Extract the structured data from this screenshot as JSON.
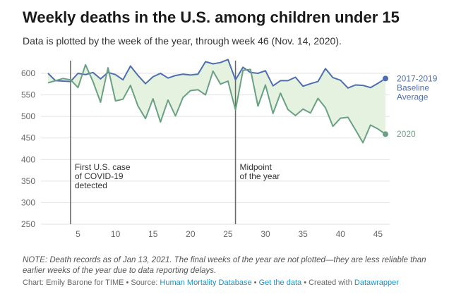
{
  "title": "Weekly deaths in the U.S. among children under 15",
  "subtitle": "Data is plotted by the week of the year, through week 46 (Nov. 14, 2020).",
  "note": "NOTE: Death records as of Jan 13, 2021. The final weeks of the year are not plotted—they are less reliable than earlier weeks of the year due to data reporting delays.",
  "credits": {
    "prefix": "Chart: Emily Barone for TIME • Source: ",
    "source_link": "Human Mortality Database",
    "sep1": " • ",
    "data_link": "Get the data",
    "sep2": " • Created with ",
    "tool_link": "Datawrapper"
  },
  "colors": {
    "baseline": "#4e6fad",
    "y2020": "#6aa084",
    "fill": "#e4f2df",
    "grid": "#e2e2e2",
    "annotation_line": "#666666",
    "axis_text": "#666666"
  },
  "chart_data": {
    "type": "line",
    "xlabel": "",
    "ylabel": "",
    "xlim": [
      1,
      46
    ],
    "ylim": [
      250,
      600
    ],
    "y_ticks": [
      250,
      300,
      350,
      400,
      450,
      500,
      550,
      600
    ],
    "x_ticks": [
      5,
      10,
      15,
      20,
      25,
      30,
      35,
      40,
      45
    ],
    "fill_between": true,
    "series": [
      {
        "name": "2017-2019 Baseline Average",
        "label_lines": [
          "2017-2019",
          "Baseline",
          "Average"
        ],
        "x": [
          1,
          2,
          3,
          4,
          5,
          6,
          7,
          8,
          9,
          10,
          11,
          12,
          13,
          14,
          15,
          16,
          17,
          18,
          19,
          20,
          21,
          22,
          23,
          24,
          25,
          26,
          27,
          28,
          29,
          30,
          31,
          32,
          33,
          34,
          35,
          36,
          37,
          38,
          39,
          40,
          41,
          42,
          43,
          44,
          45,
          46
        ],
        "values": [
          600,
          583,
          582,
          581,
          600,
          597,
          602,
          587,
          602,
          597,
          585,
          617,
          595,
          576,
          592,
          600,
          589,
          595,
          598,
          596,
          598,
          627,
          622,
          625,
          632,
          585,
          614,
          602,
          600,
          606,
          571,
          583,
          583,
          591,
          570,
          576,
          581,
          611,
          590,
          584,
          566,
          573,
          572,
          567,
          577,
          588
        ]
      },
      {
        "name": "2020",
        "label_lines": [
          "2020"
        ],
        "x": [
          1,
          2,
          3,
          4,
          5,
          6,
          7,
          8,
          9,
          10,
          11,
          12,
          13,
          14,
          15,
          16,
          17,
          18,
          19,
          20,
          21,
          22,
          23,
          24,
          25,
          26,
          27,
          28,
          29,
          30,
          31,
          32,
          33,
          34,
          35,
          36,
          37,
          38,
          39,
          40,
          41,
          42,
          43,
          44,
          45,
          46
        ],
        "values": [
          578,
          583,
          588,
          585,
          567,
          620,
          581,
          533,
          613,
          536,
          540,
          572,
          524,
          495,
          541,
          487,
          538,
          501,
          544,
          560,
          562,
          550,
          605,
          575,
          582,
          515,
          607,
          609,
          524,
          573,
          507,
          554,
          516,
          502,
          517,
          508,
          542,
          520,
          477,
          496,
          498,
          469,
          439,
          480,
          471,
          459
        ]
      }
    ],
    "annotations": [
      {
        "x": 4,
        "lines": [
          "First U.S. case",
          "of COVID-19",
          "detected"
        ]
      },
      {
        "x": 26,
        "lines": [
          "Midpoint",
          "of the year"
        ]
      }
    ]
  }
}
